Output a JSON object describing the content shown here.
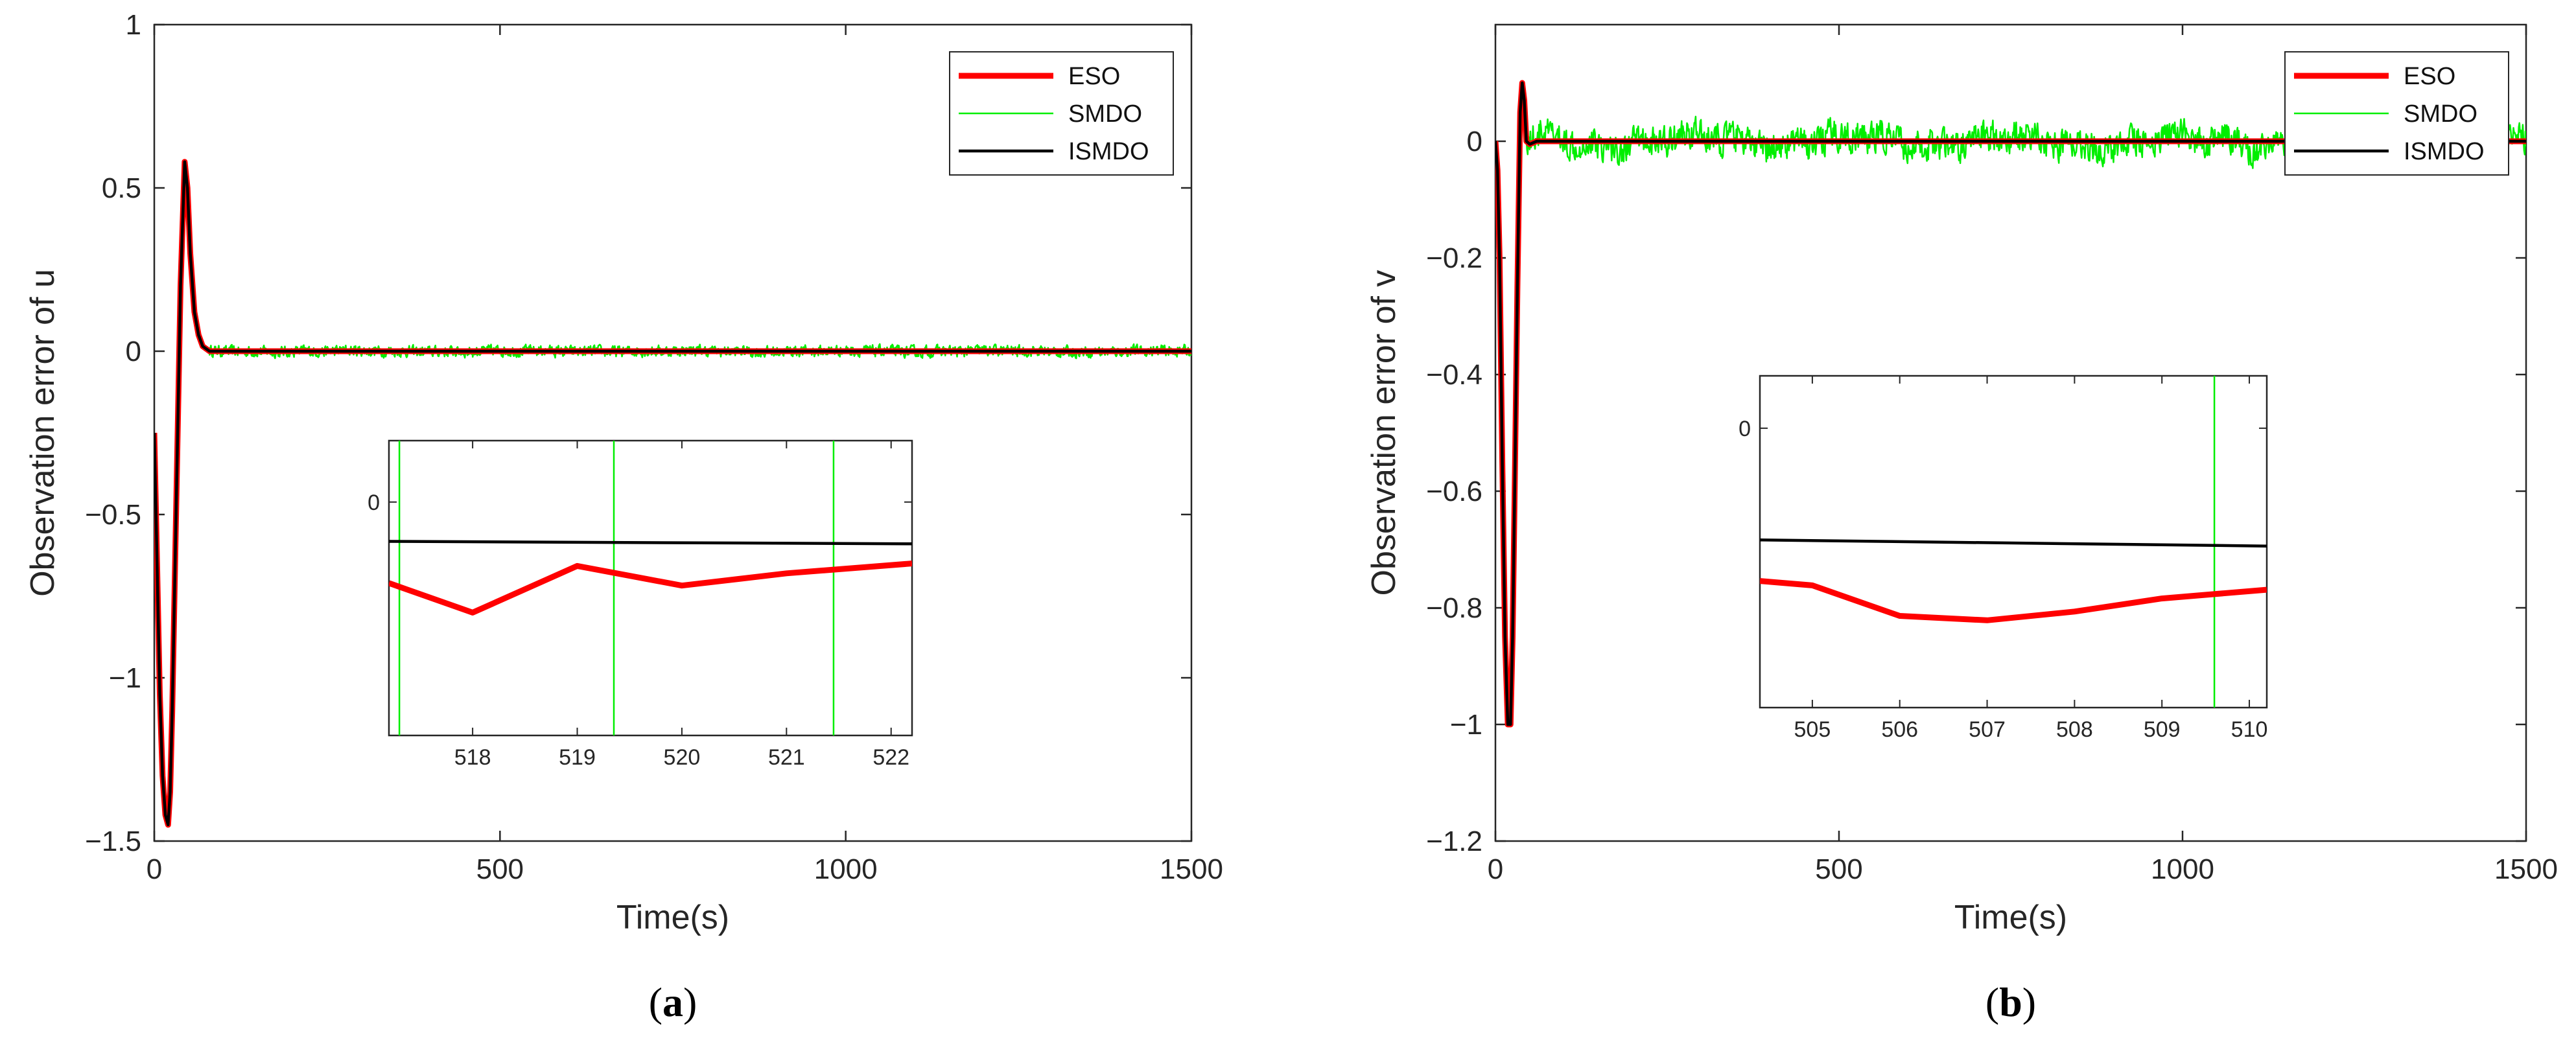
{
  "colors": {
    "ESO": "#ff0000",
    "SMDO": "#00ee00",
    "ISMDO": "#000000"
  },
  "chart_data": [
    {
      "panel": "a",
      "type": "line",
      "caption_open": "(",
      "caption_letter": "a",
      "caption_close": ")",
      "xlabel": "Time(s)",
      "ylabel": "Observation error of u",
      "xlim": [
        0,
        1500
      ],
      "ylim": [
        -1.5,
        1
      ],
      "xticks": [
        0,
        500,
        1000,
        1500
      ],
      "xtick_labels": [
        "0",
        "500",
        "1000",
        "1500"
      ],
      "yticks": [
        1,
        0.5,
        0,
        -0.5,
        -1,
        -1.5
      ],
      "ytick_labels": [
        "1",
        "0.5",
        "0",
        "−0.5",
        "−1",
        "−1.5"
      ],
      "legend": {
        "position": "top-right",
        "entries": [
          "ESO",
          "SMDO",
          "ISMDO"
        ]
      },
      "series": [
        {
          "name": "ESO",
          "x": [
            0,
            4,
            8,
            12,
            16,
            20,
            23,
            26,
            32,
            38,
            44,
            48,
            52,
            58,
            64,
            70,
            80,
            100,
            300,
            600,
            900,
            1200,
            1500
          ],
          "y": [
            -0.25,
            -0.65,
            -1.05,
            -1.3,
            -1.42,
            -1.45,
            -1.35,
            -1.1,
            -0.45,
            0.2,
            0.58,
            0.5,
            0.3,
            0.12,
            0.05,
            0.015,
            0,
            0,
            0,
            0,
            0,
            0,
            0
          ]
        },
        {
          "name": "SMDO",
          "x": [
            0,
            4,
            8,
            12,
            16,
            20,
            23,
            26,
            32,
            38,
            44,
            48,
            52,
            58,
            64,
            70,
            80,
            100,
            1500
          ],
          "y": [
            -0.25,
            -0.65,
            -1.05,
            -1.3,
            -1.42,
            -1.45,
            -1.35,
            -1.1,
            -0.45,
            0.2,
            0.58,
            0.5,
            0.3,
            0.12,
            0.05,
            0.015,
            0,
            0,
            0
          ],
          "noise_amplitude": 0.03,
          "noise_from_x": 80
        },
        {
          "name": "ISMDO",
          "x": [
            0,
            4,
            8,
            12,
            16,
            20,
            23,
            26,
            32,
            38,
            44,
            48,
            52,
            58,
            64,
            70,
            80,
            100,
            300,
            600,
            900,
            1200,
            1500
          ],
          "y": [
            -0.25,
            -0.65,
            -1.05,
            -1.3,
            -1.42,
            -1.45,
            -1.35,
            -1.1,
            -0.45,
            0.2,
            0.58,
            0.5,
            0.3,
            0.12,
            0.05,
            0.015,
            0,
            0,
            0,
            0,
            0,
            0,
            0
          ]
        }
      ],
      "inset": {
        "xlim": [
          517.2,
          522.2
        ],
        "ylim": [
          -0.095,
          0.025
        ],
        "xticks": [
          518,
          519,
          520,
          521,
          522
        ],
        "xtick_labels": [
          "518",
          "519",
          "520",
          "521",
          "522"
        ],
        "yticks": [
          0
        ],
        "ytick_labels": [
          "0"
        ],
        "series": [
          {
            "name": "ESO",
            "x": [
              517.2,
              518,
              519,
              520,
              521,
              522.2
            ],
            "y": [
              -0.033,
              -0.045,
              -0.026,
              -0.034,
              -0.029,
              -0.025
            ]
          },
          {
            "name": "ISMDO",
            "x": [
              517.2,
              522.2
            ],
            "y": [
              -0.016,
              -0.017
            ]
          },
          {
            "name": "SMDO",
            "spikes_at_x": [
              517.3,
              519.35,
              521.45
            ]
          }
        ]
      }
    },
    {
      "panel": "b",
      "type": "line",
      "caption_open": "(",
      "caption_letter": "b",
      "caption_close": ")",
      "xlabel": "Time(s)",
      "ylabel": "Observation error of v",
      "xlim": [
        0,
        1500
      ],
      "ylim": [
        -1.2,
        0.2
      ],
      "xticks": [
        0,
        500,
        1000,
        1500
      ],
      "xtick_labels": [
        "0",
        "500",
        "1000",
        "1500"
      ],
      "yticks": [
        0,
        -0.2,
        -0.4,
        -0.6,
        -0.8,
        -1,
        -1.2
      ],
      "ytick_labels": [
        "0",
        "−0.2",
        "−0.4",
        "−0.6",
        "−0.8",
        "−1",
        "−1.2"
      ],
      "legend": {
        "position": "top-right",
        "entries": [
          "ESO",
          "SMDO",
          "ISMDO"
        ]
      },
      "series": [
        {
          "name": "ESO",
          "x": [
            0,
            3,
            6,
            10,
            14,
            18,
            22,
            25,
            28,
            32,
            36,
            39,
            42,
            45,
            50,
            60,
            80,
            1500
          ],
          "y": [
            0,
            -0.05,
            -0.2,
            -0.55,
            -0.85,
            -1.0,
            -1.0,
            -0.85,
            -0.6,
            -0.25,
            0.05,
            0.1,
            0.07,
            0.0,
            -0.005,
            0,
            0,
            0
          ]
        },
        {
          "name": "SMDO",
          "x": [
            0,
            3,
            6,
            10,
            14,
            18,
            22,
            25,
            28,
            32,
            36,
            39,
            42,
            45,
            50,
            60,
            80,
            1500
          ],
          "y": [
            0,
            -0.05,
            -0.2,
            -0.55,
            -0.85,
            -1.0,
            -1.0,
            -0.85,
            -0.6,
            -0.25,
            0.05,
            0.1,
            0.07,
            0.0,
            -0.005,
            0,
            0,
            0
          ],
          "noise_amplitude": 0.045,
          "noise_from_x": 45
        },
        {
          "name": "ISMDO",
          "x": [
            0,
            3,
            6,
            10,
            14,
            18,
            22,
            25,
            28,
            32,
            36,
            39,
            42,
            45,
            50,
            60,
            80,
            1500
          ],
          "y": [
            0,
            -0.05,
            -0.2,
            -0.55,
            -0.85,
            -1.0,
            -1.0,
            -0.85,
            -0.6,
            -0.25,
            0.05,
            0.1,
            0.07,
            0.0,
            -0.005,
            0,
            0,
            0
          ]
        }
      ],
      "inset": {
        "xlim": [
          504.4,
          510.2
        ],
        "ylim": [
          -0.032,
          0.006
        ],
        "xticks": [
          505,
          506,
          507,
          508,
          509,
          510
        ],
        "xtick_labels": [
          "505",
          "506",
          "507",
          "508",
          "509",
          "510"
        ],
        "yticks": [
          0
        ],
        "ytick_labels": [
          "0"
        ],
        "series": [
          {
            "name": "ESO",
            "x": [
              504.4,
              505,
              506,
              507,
              508,
              509,
              510.2
            ],
            "y": [
              -0.0175,
              -0.018,
              -0.0215,
              -0.022,
              -0.021,
              -0.0195,
              -0.0185
            ]
          },
          {
            "name": "ISMDO",
            "x": [
              504.4,
              510.2
            ],
            "y": [
              -0.0128,
              -0.0135
            ]
          },
          {
            "name": "SMDO",
            "spikes_at_x": [
              509.6
            ]
          }
        ]
      }
    }
  ]
}
